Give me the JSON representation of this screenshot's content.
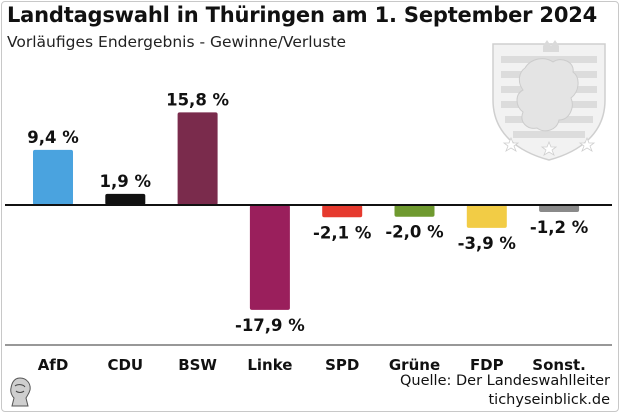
{
  "header": {
    "title": "Landtagswahl in Thüringen am 1. September 2024",
    "subtitle": "Vorläufiges Endergebnis - Gewinne/Verluste"
  },
  "footer": {
    "source": "Quelle: Der Landeswahlleiter",
    "site": "tichyseinblick.de"
  },
  "icons": {
    "crest": "thuringia-coat-of-arms-icon",
    "logo": "publisher-logo-icon"
  },
  "chart_data": {
    "type": "bar",
    "title": "Landtagswahl in Thüringen am 1. September 2024",
    "subtitle": "Vorläufiges Endergebnis - Gewinne/Verluste",
    "xlabel": "",
    "ylabel": "",
    "ylim": [
      -20,
      20
    ],
    "categories": [
      "AfD",
      "CDU",
      "BSW",
      "Linke",
      "SPD",
      "Grüne",
      "FDP",
      "Sonst."
    ],
    "values": [
      9.4,
      1.9,
      15.8,
      -17.9,
      -2.1,
      -2.0,
      -3.9,
      -1.2
    ],
    "labels": [
      "9,4 %",
      "1,9 %",
      "15,8 %",
      "-17,9 %",
      "-2,1 %",
      "-2,0 %",
      "-3,9 %",
      "-1,2 %"
    ],
    "colors": [
      "#4aa3df",
      "#111111",
      "#7a2b4c",
      "#9a1f5c",
      "#e63a2e",
      "#6f9a2f",
      "#f2cc45",
      "#8a8a8a"
    ],
    "grid": false
  }
}
